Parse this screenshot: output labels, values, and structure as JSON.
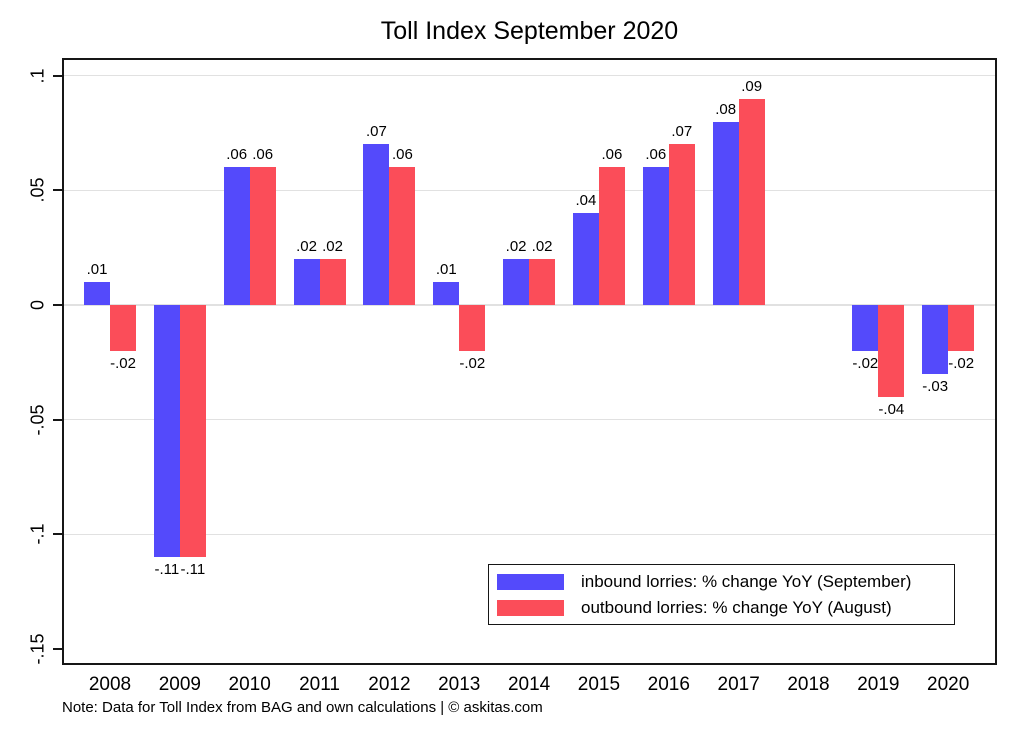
{
  "title": "Toll Index September 2020",
  "note": "Note: Data for Toll Index from BAG and own calculations | © askitas.com",
  "chart_data": {
    "type": "bar",
    "title": "Toll Index September 2020",
    "categories": [
      "2008",
      "2009",
      "2010",
      "2011",
      "2012",
      "2013",
      "2014",
      "2015",
      "2016",
      "2017",
      "2018",
      "2019",
      "2020"
    ],
    "series": [
      {
        "name": "inbound lorries: % change YoY (September)",
        "color": "#544afb",
        "values": [
          0.01,
          -0.11,
          0.06,
          0.02,
          0.07,
          0.01,
          0.02,
          0.04,
          0.06,
          0.08,
          null,
          -0.02,
          -0.03
        ],
        "labels": [
          ".01",
          "-.11",
          ".06",
          ".02",
          ".07",
          ".01",
          ".02",
          ".04",
          ".06",
          ".08",
          "",
          "-.02",
          "-.03"
        ]
      },
      {
        "name": "outbound lorries: % change YoY (August)",
        "color": "#fb4d59",
        "values": [
          -0.02,
          -0.11,
          0.06,
          0.02,
          0.06,
          -0.02,
          0.02,
          0.06,
          0.07,
          0.09,
          null,
          -0.04,
          -0.02
        ],
        "labels": [
          "-.02",
          "-.11",
          ".06",
          ".02",
          ".06",
          "-.02",
          ".02",
          ".06",
          ".07",
          ".09",
          "",
          "-.04",
          "-.02"
        ]
      }
    ],
    "y_ticks": [
      {
        "value": 0.1,
        "label": ".1",
        "grid": true
      },
      {
        "value": 0.05,
        "label": ".05",
        "grid": true
      },
      {
        "value": 0,
        "label": "0",
        "grid": true
      },
      {
        "value": -0.05,
        "label": "-.05",
        "grid": true
      },
      {
        "value": -0.1,
        "label": "-.1",
        "grid": true
      },
      {
        "value": -0.15,
        "label": "-.15",
        "grid": false
      }
    ],
    "ylim": [
      -0.157,
      0.108
    ],
    "xlabel": "",
    "ylabel": "",
    "grid": true,
    "legend_position": "inside bottom-right",
    "colors": {
      "grid": "#e1e1e1",
      "frame": "#161616",
      "background": "#ffffff",
      "text": "#000000"
    }
  }
}
